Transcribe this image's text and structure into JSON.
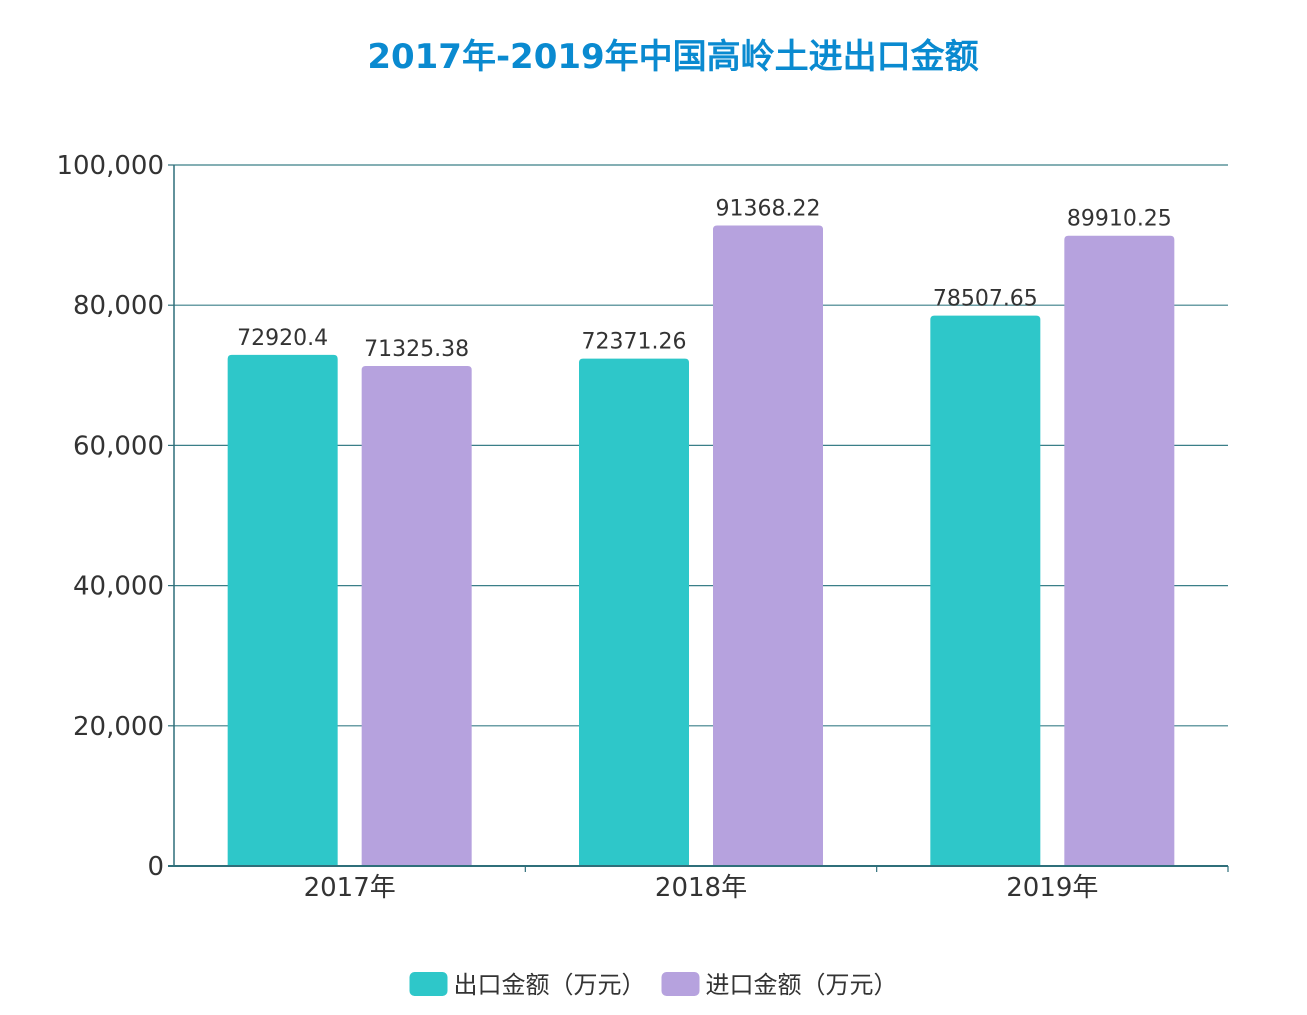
{
  "chart_data": {
    "type": "bar",
    "title": "2017年-2019年中国高岭土进出口金额",
    "categories": [
      "2017年",
      "2018年",
      "2019年"
    ],
    "series": [
      {
        "name": "出口金额（万元）",
        "values": [
          72920.4,
          72371.26,
          78507.65
        ],
        "labels": [
          "72920.4",
          "72371.26",
          "78507.65"
        ],
        "color": "#2ec7c9"
      },
      {
        "name": "进口金额（万元）",
        "values": [
          71325.38,
          91368.22,
          89910.25
        ],
        "labels": [
          "71325.38",
          "91368.22",
          "89910.25"
        ],
        "color": "#b6a2de"
      }
    ],
    "ylim": [
      0,
      100000
    ],
    "yticks": [
      "0",
      "20,000",
      "40,000",
      "60,000",
      "80,000",
      "100,000"
    ],
    "xlabel": "",
    "ylabel": "",
    "grid": true,
    "legend_position": "bottom-center"
  },
  "colors": {
    "title": "#0a8ad0",
    "axis": "#2f6f7a",
    "grid": "#3a7f88"
  }
}
